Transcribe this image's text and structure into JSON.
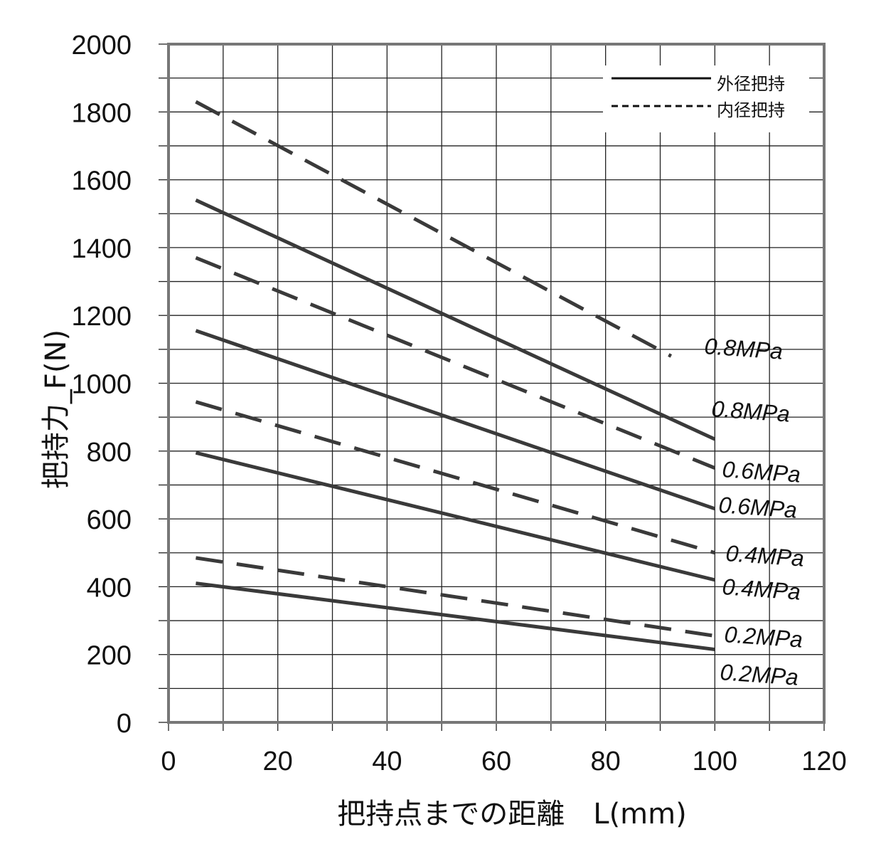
{
  "chart_data": {
    "type": "line",
    "xlabel": "把持点までの距離　L(mm)",
    "ylabel": "把持力_F(N)",
    "xlim": [
      0,
      120
    ],
    "ylim": [
      0,
      2000
    ],
    "x_ticks": [
      0,
      20,
      40,
      60,
      80,
      100,
      120
    ],
    "y_ticks": [
      0,
      200,
      400,
      600,
      800,
      1000,
      1200,
      1400,
      1600,
      1800,
      2000
    ],
    "x_minor_step": 10,
    "y_minor_step": 100,
    "grid": true,
    "legend_position": "top-right",
    "legend": [
      {
        "label": "外径把持",
        "style": "solid"
      },
      {
        "label": "内径把持",
        "style": "dashed"
      }
    ],
    "series": [
      {
        "name": "0.8MPa",
        "group": "内径把持",
        "style": "dashed",
        "x": [
          5,
          92
        ],
        "y": [
          1830,
          1080
        ]
      },
      {
        "name": "0.8MPa",
        "group": "外径把持",
        "style": "solid",
        "x": [
          5,
          100
        ],
        "y": [
          1540,
          835
        ]
      },
      {
        "name": "0.6MPa",
        "group": "内径把持",
        "style": "dashed",
        "x": [
          5,
          100
        ],
        "y": [
          1370,
          750
        ]
      },
      {
        "name": "0.6MPa",
        "group": "外径把持",
        "style": "solid",
        "x": [
          5,
          100
        ],
        "y": [
          1155,
          630
        ]
      },
      {
        "name": "0.4MPa",
        "group": "内径把持",
        "style": "dashed",
        "x": [
          5,
          100
        ],
        "y": [
          945,
          500
        ]
      },
      {
        "name": "0.4MPa",
        "group": "外径把持",
        "style": "solid",
        "x": [
          5,
          100
        ],
        "y": [
          795,
          420
        ]
      },
      {
        "name": "0.2MPa",
        "group": "内径把持",
        "style": "dashed",
        "x": [
          5,
          100
        ],
        "y": [
          485,
          255
        ]
      },
      {
        "name": "0.2MPa",
        "group": "外径把持",
        "style": "solid",
        "x": [
          5,
          100
        ],
        "y": [
          410,
          215
        ]
      }
    ]
  }
}
